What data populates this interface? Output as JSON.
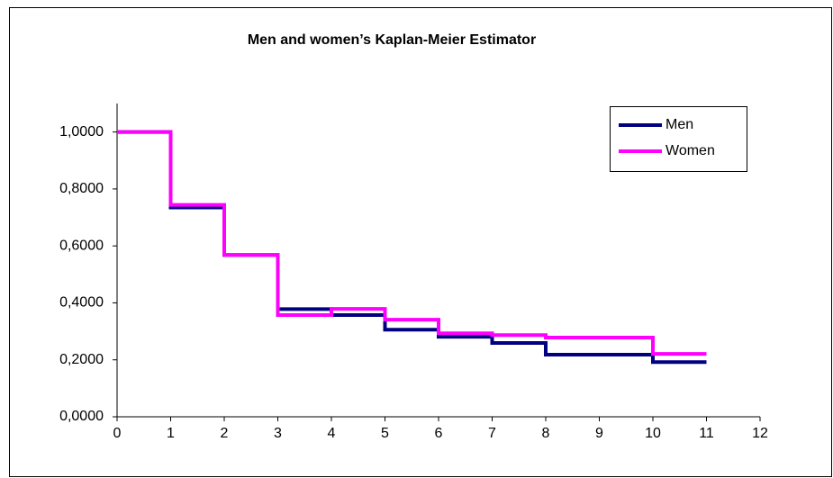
{
  "chart_data": {
    "type": "line",
    "step": "post",
    "title": "Men and women’s  Kaplan-Meier Estimator",
    "x": [
      0,
      1,
      2,
      3,
      4,
      5,
      6,
      7,
      8,
      9,
      10,
      11
    ],
    "series": [
      {
        "name": "Men",
        "color": "#000080",
        "values": [
          1.0,
          0.735,
          0.568,
          0.378,
          0.357,
          0.306,
          0.281,
          0.259,
          0.218,
          0.218,
          0.192,
          0.192
        ]
      },
      {
        "name": "Women",
        "color": "#ff00ff",
        "values": [
          1.0,
          0.744,
          0.568,
          0.357,
          0.379,
          0.341,
          0.293,
          0.287,
          0.278,
          0.278,
          0.221,
          0.221
        ]
      }
    ],
    "xlim": [
      0,
      12
    ],
    "xticks": [
      0,
      1,
      2,
      3,
      4,
      5,
      6,
      7,
      8,
      9,
      10,
      11,
      12
    ],
    "ylim": [
      0,
      1.1
    ],
    "yticks": [
      {
        "value": 0,
        "label": "0,0000"
      },
      {
        "value": 0.2,
        "label": "0,2000"
      },
      {
        "value": 0.4,
        "label": "0,4000"
      },
      {
        "value": 0.6,
        "label": "0,6000"
      },
      {
        "value": 0.8,
        "label": "0,8000"
      },
      {
        "value": 1.0,
        "label": "1,0000"
      }
    ],
    "grid": false,
    "legend": "top-right"
  }
}
